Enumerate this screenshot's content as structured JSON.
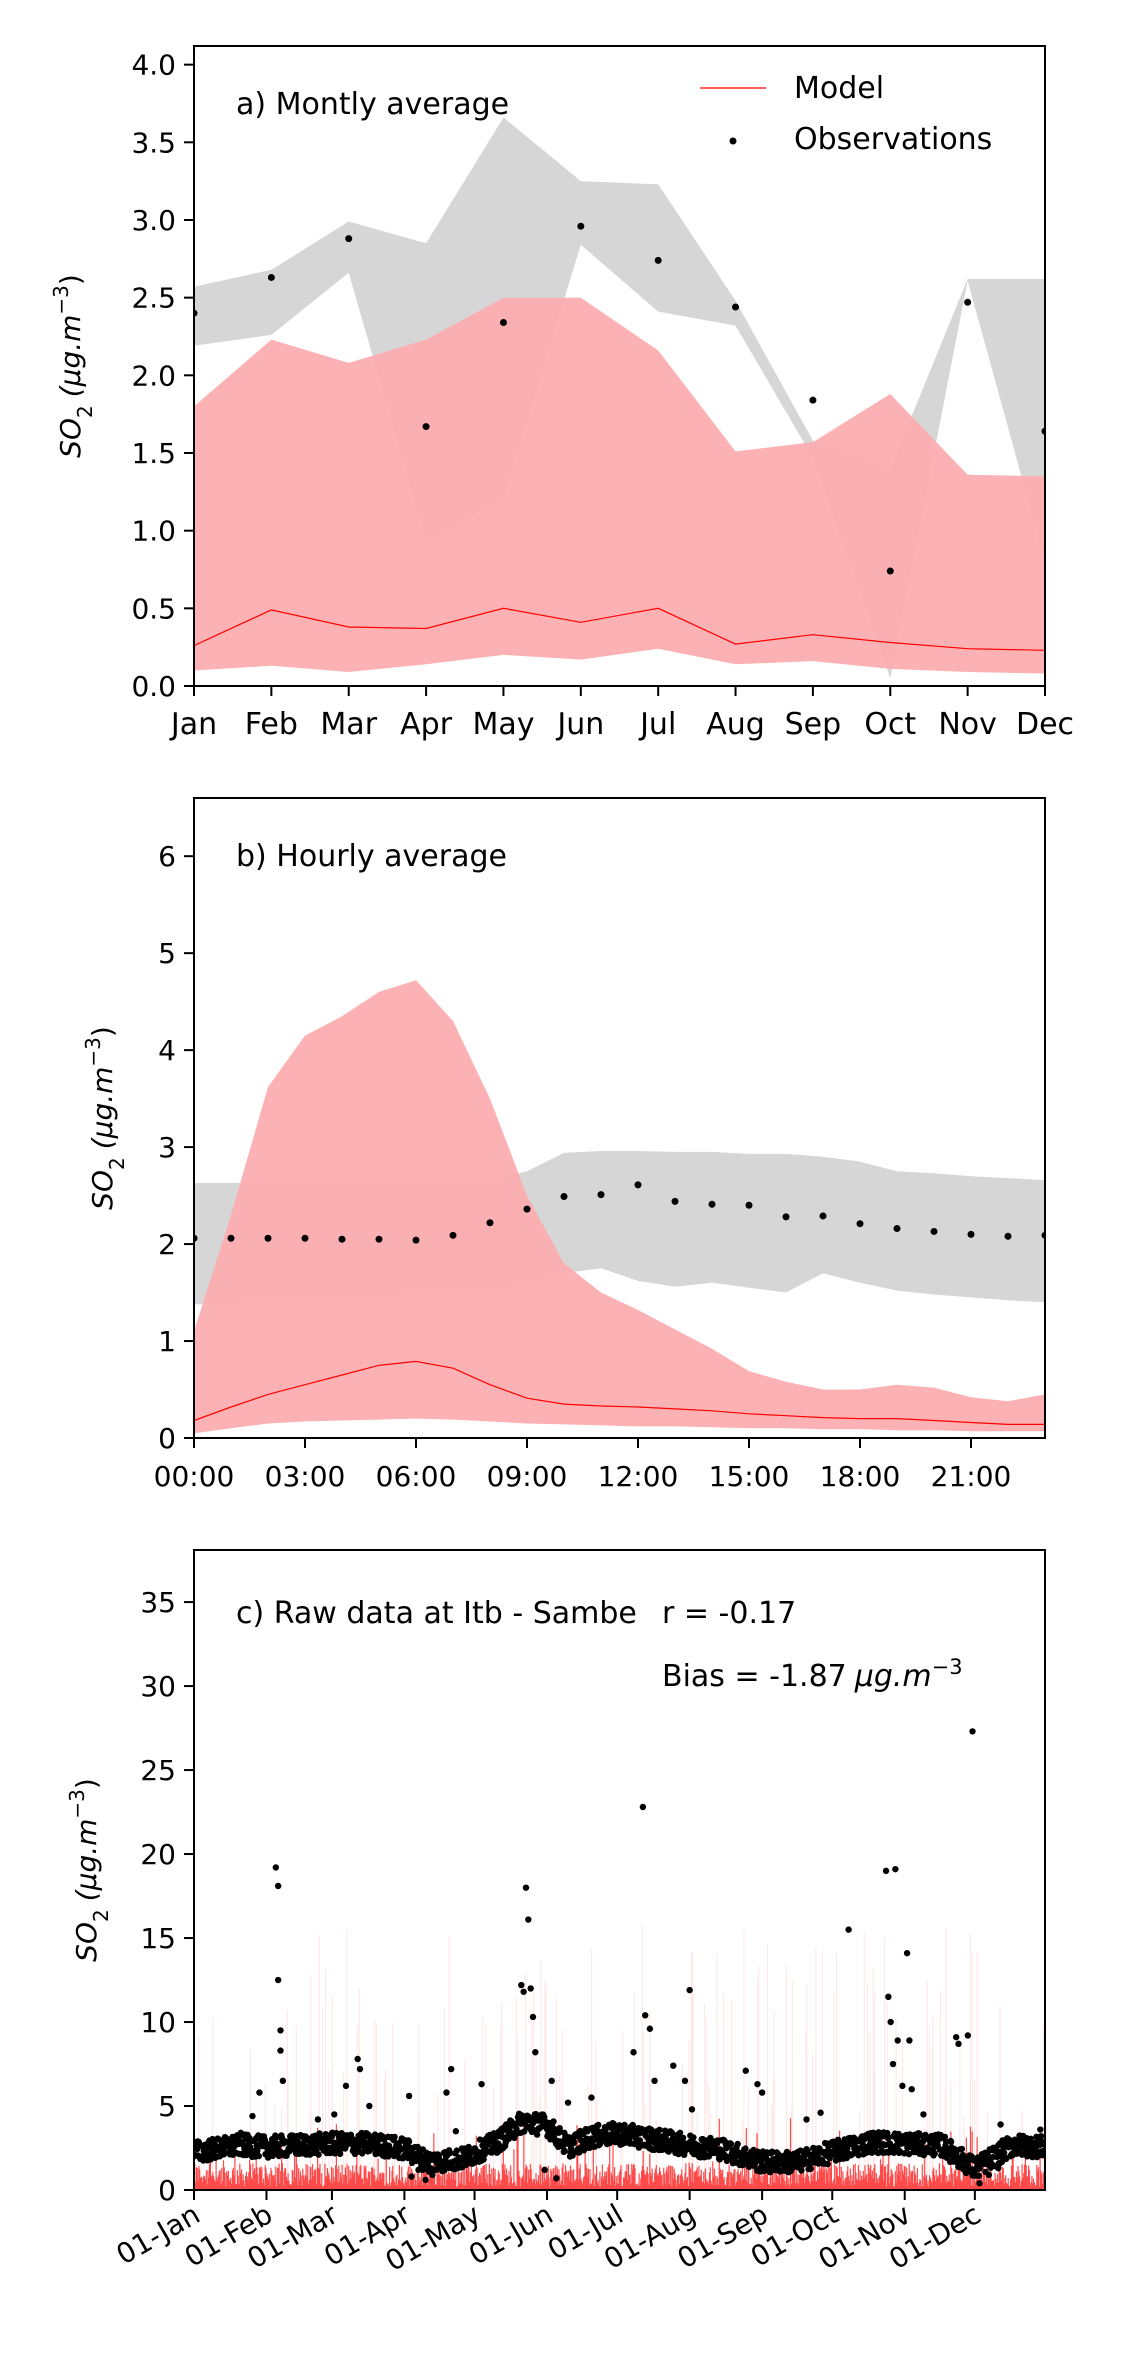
{
  "colors": {
    "model": "#ff0000",
    "model_band": "#fcaeb0",
    "obs_band": "#d6d6d6",
    "obs": "#000000",
    "raw_model": "#ff2a2a"
  },
  "chart_data": [
    {
      "id": "a",
      "type": "line",
      "panel_label": "a) Montly average",
      "xlabel": "",
      "ylabel_base": "SO",
      "ylabel_sub": "2",
      "ylabel_unit_base": "(μg.m",
      "ylabel_unit_sup": "−3",
      "ylabel_close": ")",
      "ylim": [
        0,
        4.12
      ],
      "yticks": [
        "0.0",
        "0.5",
        "1.0",
        "1.5",
        "2.0",
        "2.5",
        "3.0",
        "3.5",
        "4.0"
      ],
      "ytick_values": [
        0,
        0.5,
        1.0,
        1.5,
        2.0,
        2.5,
        3.0,
        3.5,
        4.0
      ],
      "x_categories": [
        "Jan",
        "Feb",
        "Mar",
        "Apr",
        "May",
        "Jun",
        "Jul",
        "Aug",
        "Sep",
        "Oct",
        "Nov",
        "Dec"
      ],
      "legend": {
        "position": "top-right",
        "model_label": "Model",
        "obs_label": "Observations"
      },
      "model_median": [
        0.26,
        0.49,
        0.38,
        0.37,
        0.5,
        0.41,
        0.5,
        0.27,
        0.33,
        0.28,
        0.24,
        0.23
      ],
      "model_band_low": [
        0.1,
        0.13,
        0.09,
        0.14,
        0.2,
        0.17,
        0.24,
        0.14,
        0.16,
        0.11,
        0.09,
        0.08
      ],
      "model_band_high": [
        1.8,
        2.23,
        2.08,
        2.23,
        2.5,
        2.5,
        2.16,
        1.51,
        1.57,
        1.88,
        1.36,
        1.35
      ],
      "obs_values": [
        2.4,
        2.63,
        2.88,
        1.67,
        2.34,
        2.96,
        2.74,
        2.44,
        1.84,
        0.74,
        2.47,
        1.64
      ],
      "obs_band_low": [
        2.19,
        2.26,
        2.66,
        0.93,
        1.21,
        2.84,
        2.41,
        2.32,
        1.47,
        0.05,
        2.61,
        0.8
      ],
      "obs_band_high": [
        2.57,
        2.68,
        2.99,
        2.85,
        3.66,
        3.25,
        3.23,
        2.48,
        1.58,
        1.4,
        2.62,
        2.62
      ]
    },
    {
      "id": "b",
      "type": "line",
      "panel_label": "b) Hourly average",
      "xlabel": "",
      "ylabel_base": "SO",
      "ylabel_sub": "2",
      "ylabel_unit_base": "(μg.m",
      "ylabel_unit_sup": "−3",
      "ylabel_close": ")",
      "ylim": [
        0,
        6.6
      ],
      "yticks": [
        "0",
        "1",
        "2",
        "3",
        "4",
        "5",
        "6"
      ],
      "ytick_values": [
        0,
        1,
        2,
        3,
        4,
        5,
        6
      ],
      "xlim": [
        0,
        23
      ],
      "xticks": [
        "00:00",
        "03:00",
        "06:00",
        "09:00",
        "12:00",
        "15:00",
        "18:00",
        "21:00"
      ],
      "xtick_values": [
        0,
        3,
        6,
        9,
        12,
        15,
        18,
        21
      ],
      "hours": [
        0,
        1,
        2,
        3,
        4,
        5,
        6,
        7,
        8,
        9,
        10,
        11,
        12,
        13,
        14,
        15,
        16,
        17,
        18,
        19,
        20,
        21,
        22,
        23
      ],
      "model_median": [
        0.18,
        0.32,
        0.45,
        0.55,
        0.65,
        0.75,
        0.79,
        0.72,
        0.55,
        0.41,
        0.35,
        0.33,
        0.32,
        0.3,
        0.28,
        0.25,
        0.23,
        0.21,
        0.2,
        0.2,
        0.18,
        0.16,
        0.14,
        0.14
      ],
      "model_band_low": [
        0.05,
        0.1,
        0.15,
        0.17,
        0.18,
        0.19,
        0.2,
        0.19,
        0.17,
        0.15,
        0.14,
        0.13,
        0.12,
        0.12,
        0.11,
        0.1,
        0.1,
        0.09,
        0.09,
        0.08,
        0.08,
        0.07,
        0.07,
        0.07
      ],
      "model_band_high": [
        1.1,
        2.3,
        3.62,
        4.15,
        4.35,
        4.6,
        4.72,
        4.3,
        3.5,
        2.5,
        1.8,
        1.5,
        1.32,
        1.12,
        0.92,
        0.69,
        0.58,
        0.5,
        0.5,
        0.55,
        0.52,
        0.42,
        0.38,
        0.45
      ],
      "obs_values": [
        2.06,
        2.06,
        2.06,
        2.06,
        2.05,
        2.05,
        2.04,
        2.09,
        2.22,
        2.36,
        2.49,
        2.51,
        2.61,
        2.44,
        2.41,
        2.4,
        2.28,
        2.29,
        2.21,
        2.16,
        2.13,
        2.1,
        2.08,
        2.09
      ],
      "obs_band_low": [
        1.38,
        1.38,
        1.45,
        1.42,
        1.47,
        1.45,
        1.5,
        1.52,
        1.52,
        1.6,
        1.7,
        1.75,
        1.62,
        1.56,
        1.6,
        1.55,
        1.5,
        1.7,
        1.6,
        1.52,
        1.48,
        1.45,
        1.42,
        1.4
      ],
      "obs_band_high": [
        2.63,
        2.63,
        2.63,
        2.63,
        2.63,
        2.63,
        2.62,
        2.62,
        2.66,
        2.75,
        2.94,
        2.96,
        2.96,
        2.95,
        2.95,
        2.93,
        2.93,
        2.9,
        2.85,
        2.75,
        2.73,
        2.7,
        2.68,
        2.66
      ]
    },
    {
      "id": "c",
      "type": "scatter",
      "panel_label": "c) Raw data at Itb - Sambe",
      "r_text": "r = -0.17",
      "bias_text_base": "Bias = -1.87",
      "bias_text_unit": "μg.m",
      "bias_text_sup": "−3",
      "xlabel": "",
      "ylabel_base": "SO",
      "ylabel_sub": "2",
      "ylabel_unit_base": "(μg.m",
      "ylabel_unit_sup": "−3",
      "ylabel_close": ")",
      "ylim": [
        0,
        38.1
      ],
      "yticks": [
        "0",
        "5",
        "10",
        "15",
        "20",
        "25",
        "30",
        "35"
      ],
      "ytick_values": [
        0,
        5,
        10,
        15,
        20,
        25,
        30,
        35
      ],
      "xlim_day": [
        0,
        364
      ],
      "xticks": [
        "01-Jan",
        "01-Feb",
        "01-Mar",
        "01-Apr",
        "01-May",
        "01-Jun",
        "01-Jul",
        "01-Aug",
        "01-Sep",
        "01-Oct",
        "01-Nov",
        "01-Dec"
      ],
      "xtick_dates": [
        "2019-01-01",
        "2019-02-01",
        "2019-03-01",
        "2019-04-01",
        "2019-05-01",
        "2019-06-01",
        "2019-07-01",
        "2019-08-01",
        "2019-09-01",
        "2019-10-01",
        "2019-11-01",
        "2019-12-01"
      ],
      "xtick_days": [
        0,
        31,
        59,
        90,
        120,
        151,
        181,
        212,
        243,
        273,
        304,
        334
      ],
      "obs_baseline": [
        [
          0,
          2.2
        ],
        [
          10,
          2.4
        ],
        [
          20,
          2.6
        ],
        [
          31,
          2.5
        ],
        [
          45,
          2.6
        ],
        [
          59,
          2.7
        ],
        [
          75,
          2.7
        ],
        [
          90,
          2.4
        ],
        [
          100,
          1.6
        ],
        [
          115,
          1.8
        ],
        [
          130,
          2.8
        ],
        [
          140,
          4.0
        ],
        [
          151,
          3.8
        ],
        [
          160,
          2.5
        ],
        [
          170,
          3.1
        ],
        [
          181,
          3.3
        ],
        [
          195,
          3.0
        ],
        [
          212,
          2.6
        ],
        [
          225,
          2.4
        ],
        [
          243,
          1.6
        ],
        [
          258,
          1.6
        ],
        [
          273,
          2.2
        ],
        [
          290,
          2.8
        ],
        [
          304,
          2.7
        ],
        [
          320,
          2.6
        ],
        [
          334,
          1.2
        ],
        [
          350,
          2.6
        ],
        [
          364,
          2.5
        ]
      ],
      "obs_peaks": [
        [
          20,
          3.4
        ],
        [
          25,
          4.4
        ],
        [
          28,
          5.8
        ],
        [
          35,
          19.2
        ],
        [
          36,
          18.1
        ],
        [
          36,
          12.5
        ],
        [
          37,
          9.5
        ],
        [
          37,
          8.3
        ],
        [
          38,
          6.5
        ],
        [
          53,
          4.2
        ],
        [
          60,
          4.5
        ],
        [
          65,
          6.2
        ],
        [
          70,
          7.8
        ],
        [
          71,
          7.2
        ],
        [
          75,
          5.0
        ],
        [
          92,
          5.6
        ],
        [
          108,
          5.8
        ],
        [
          110,
          7.2
        ],
        [
          112,
          3.5
        ],
        [
          123,
          6.3
        ],
        [
          140,
          12.2
        ],
        [
          141,
          11.8
        ],
        [
          142,
          18.0
        ],
        [
          143,
          16.1
        ],
        [
          144,
          12.0
        ],
        [
          145,
          10.3
        ],
        [
          146,
          8.2
        ],
        [
          153,
          6.5
        ],
        [
          160,
          5.2
        ],
        [
          170,
          5.5
        ],
        [
          188,
          8.2
        ],
        [
          193,
          10.4
        ],
        [
          195,
          9.6
        ],
        [
          192,
          22.8
        ],
        [
          197,
          6.5
        ],
        [
          205,
          7.4
        ],
        [
          210,
          6.5
        ],
        [
          212,
          11.9
        ],
        [
          213,
          4.8
        ],
        [
          236,
          7.1
        ],
        [
          241,
          6.3
        ],
        [
          243,
          5.8
        ],
        [
          262,
          4.2
        ],
        [
          268,
          4.6
        ],
        [
          280,
          15.5
        ],
        [
          296,
          19.0
        ],
        [
          300,
          19.1
        ],
        [
          297,
          11.5
        ],
        [
          298,
          10.0
        ],
        [
          301,
          8.9
        ],
        [
          299,
          7.5
        ],
        [
          303,
          6.2
        ],
        [
          305,
          14.1
        ],
        [
          306,
          8.9
        ],
        [
          307,
          6.0
        ],
        [
          312,
          4.5
        ],
        [
          326,
          9.1
        ],
        [
          327,
          8.7
        ],
        [
          331,
          9.2
        ],
        [
          333,
          27.3
        ],
        [
          345,
          3.9
        ],
        [
          362,
          3.6
        ]
      ],
      "obs_lows": [
        [
          93,
          0.8
        ],
        [
          96,
          1.2
        ],
        [
          99,
          0.6
        ],
        [
          102,
          0.9
        ],
        [
          150,
          1.2
        ],
        [
          155,
          0.7
        ],
        [
          248,
          1.2
        ],
        [
          255,
          1.5
        ],
        [
          336,
          0.4
        ],
        [
          340,
          0.9
        ],
        [
          344,
          1.3
        ]
      ]
    }
  ]
}
